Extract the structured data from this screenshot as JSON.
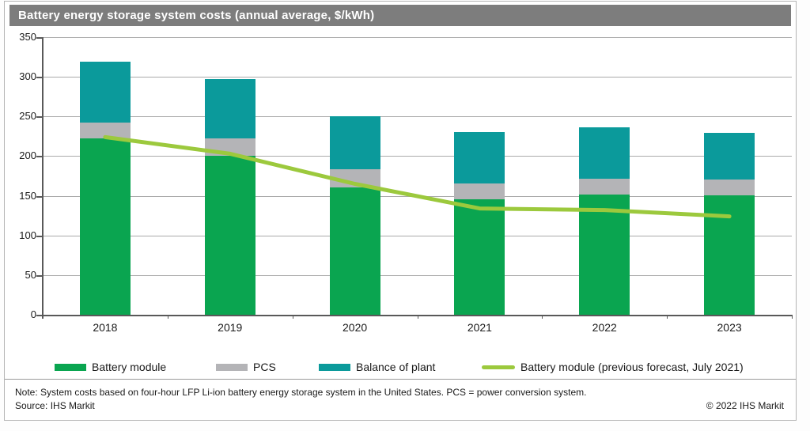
{
  "title": "Battery energy storage system costs (annual average, $/kWh)",
  "chart_data": {
    "type": "bar",
    "stacked": true,
    "title": "Battery energy storage system costs (annual average, $/kWh)",
    "categories": [
      "2018",
      "2019",
      "2020",
      "2021",
      "2022",
      "2023"
    ],
    "series": [
      {
        "name": "Battery module",
        "color": "#0aa550",
        "values": [
          222,
          200,
          161,
          146,
          152,
          151
        ]
      },
      {
        "name": "PCS",
        "color": "#b4b4b7",
        "values": [
          20,
          22,
          22,
          20,
          20,
          20
        ]
      },
      {
        "name": "Balance of plant",
        "color": "#0b9a9b",
        "values": [
          77,
          75,
          67,
          64,
          64,
          58
        ]
      }
    ],
    "totals": [
      319,
      297,
      250,
      230,
      236,
      229
    ],
    "line_series": {
      "name": "Battery module (previous forecast, July 2021)",
      "color": "#9cc93d",
      "values": [
        224,
        203,
        165,
        134,
        132,
        124
      ]
    },
    "xlabel": "",
    "ylabel": "",
    "ylim": [
      0,
      350
    ],
    "yticks": [
      0,
      50,
      100,
      150,
      200,
      250,
      300,
      350
    ],
    "grid": true,
    "legend_position": "bottom"
  },
  "legend": {
    "items": [
      {
        "label": "Battery module",
        "color": "#0aa550",
        "swatch": "bar"
      },
      {
        "label": "PCS",
        "color": "#b4b4b7",
        "swatch": "bar"
      },
      {
        "label": "Balance of plant",
        "color": "#0b9a9b",
        "swatch": "bar"
      },
      {
        "label": "Battery module (previous forecast, July 2021)",
        "color": "#9cc93d",
        "swatch": "line"
      }
    ]
  },
  "footnote": {
    "note": "Note: System costs based on four-hour LFP Li-ion battery energy storage system in the United States. PCS = power conversion system.",
    "source": "Source: IHS Markit",
    "copyright": "© 2022 IHS Markit"
  }
}
